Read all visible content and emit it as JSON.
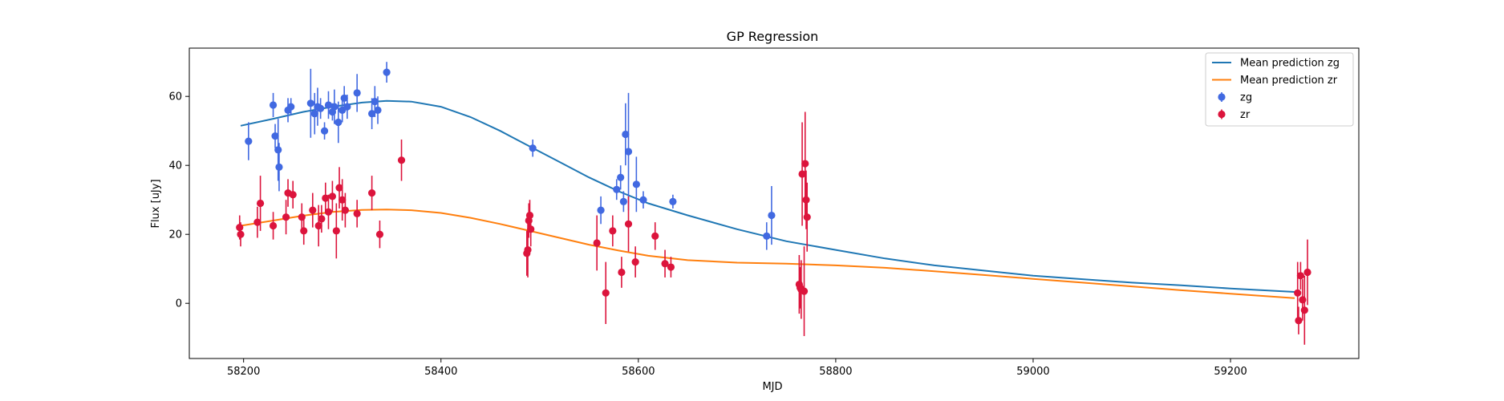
{
  "chart_data": {
    "type": "scatter",
    "title": "GP Regression",
    "xlabel": "MJD",
    "ylabel": "Flux [uJy]",
    "xlim": [
      58145,
      59330
    ],
    "ylim": [
      -16,
      74
    ],
    "xticks": [
      58200,
      58400,
      58600,
      58800,
      59000,
      59200
    ],
    "yticks": [
      0,
      20,
      40,
      60
    ],
    "grid": false,
    "legend_position": "top-right",
    "legend": [
      {
        "label": "Mean prediction zg",
        "kind": "line",
        "color": "#1f77b4"
      },
      {
        "label": "Mean prediction zr",
        "kind": "line",
        "color": "#ff7f0e"
      },
      {
        "label": "zg",
        "kind": "errorbar",
        "color": "#4169e1"
      },
      {
        "label": "zr",
        "kind": "errorbar",
        "color": "#dc143c"
      }
    ],
    "lines": [
      {
        "name": "Mean prediction zg",
        "color": "#1f77b4",
        "x": [
          58197,
          58230,
          58260,
          58290,
          58320,
          58345,
          58370,
          58400,
          58430,
          58460,
          58490,
          58520,
          58550,
          58580,
          58610,
          58650,
          58700,
          58750,
          58800,
          58850,
          58900,
          58950,
          59000,
          59050,
          59100,
          59150,
          59200,
          59265
        ],
        "y": [
          51.5,
          53.5,
          55.5,
          57,
          58.2,
          58.7,
          58.5,
          57,
          54,
          50,
          45.5,
          41,
          36.5,
          32.5,
          29,
          25.5,
          21.5,
          18,
          15.5,
          13,
          11,
          9.5,
          8,
          7,
          6,
          5.2,
          4.3,
          3.3
        ]
      },
      {
        "name": "Mean prediction zr",
        "color": "#ff7f0e",
        "x": [
          58197,
          58230,
          58260,
          58290,
          58320,
          58345,
          58370,
          58400,
          58430,
          58460,
          58490,
          58520,
          58550,
          58580,
          58610,
          58650,
          58700,
          58750,
          58800,
          58850,
          58900,
          58950,
          59000,
          59050,
          59100,
          59150,
          59200,
          59265
        ],
        "y": [
          22.5,
          24,
          25.4,
          26.5,
          27.1,
          27.2,
          27,
          26.2,
          24.8,
          23,
          21,
          19,
          17,
          15.3,
          13.8,
          12.5,
          11.8,
          11.5,
          11,
          10.3,
          9.3,
          8.2,
          7.1,
          6,
          4.9,
          3.8,
          2.8,
          1.5
        ]
      }
    ],
    "series": [
      {
        "name": "zg",
        "color": "#4169e1",
        "x": [
          58205,
          58230,
          58232,
          58235,
          58236,
          58245,
          58248,
          58268,
          58272,
          58275,
          58278,
          58282,
          58286,
          58290,
          58292,
          58296,
          58300,
          58302,
          58305,
          58315,
          58330,
          58333,
          58336,
          58345,
          58493,
          58562,
          58578,
          58582,
          58585,
          58587,
          58590,
          58598,
          58605,
          58635,
          58730,
          58735
        ],
        "y": [
          47,
          57.5,
          48.5,
          44.5,
          39.5,
          56,
          57,
          58,
          55,
          57,
          56.5,
          50,
          57.5,
          55.5,
          57,
          52.5,
          56,
          59.5,
          57,
          61,
          55,
          58.5,
          56,
          67,
          45,
          27,
          33,
          36.5,
          29.5,
          49,
          44,
          34.5,
          30,
          29.5,
          19.5,
          25.5
        ],
        "err": [
          5.5,
          3.5,
          3.5,
          9,
          7,
          3.5,
          2.5,
          10,
          6,
          5.5,
          3,
          2.5,
          4,
          2.5,
          5,
          6,
          3.5,
          3.5,
          3.5,
          5.5,
          4.5,
          4.5,
          4,
          3,
          2.5,
          4,
          3,
          3.5,
          3,
          9,
          17,
          8,
          2.5,
          2,
          4,
          8.5
        ]
      },
      {
        "name": "zr",
        "color": "#dc143c",
        "x": [
          58196,
          58197,
          58214,
          58217,
          58230,
          58243,
          58245,
          58250,
          58259,
          58261,
          58270,
          58276,
          58279,
          58283,
          58286,
          58290,
          58294,
          58297,
          58300,
          58303,
          58315,
          58330,
          58338,
          58360,
          58487,
          58488,
          58489,
          58490,
          58491,
          58558,
          58567,
          58574,
          58583,
          58590,
          58597,
          58617,
          58627,
          58633,
          58763,
          58764,
          58765,
          58766,
          58768,
          58769,
          58770,
          58771,
          59268,
          59269,
          59271,
          59273,
          59275,
          59278
        ],
        "y": [
          22,
          20,
          23.5,
          29,
          22.5,
          25,
          32,
          31.5,
          25,
          21,
          27,
          22.5,
          24.5,
          30.5,
          26.5,
          31,
          21,
          33.5,
          30,
          27,
          26,
          32,
          20,
          41.5,
          14.5,
          15.5,
          24,
          25.5,
          21.5,
          17.5,
          3,
          21,
          9,
          23,
          12,
          19.5,
          11.5,
          10.5,
          5.5,
          4.5,
          4,
          37.5,
          3.5,
          40.5,
          30,
          25,
          3,
          -5,
          8,
          1,
          -2,
          9
        ],
        "err": [
          3.5,
          3.5,
          4.5,
          8,
          4,
          5,
          4,
          4,
          4,
          4,
          5,
          6,
          4,
          4.5,
          5,
          4.5,
          8,
          6,
          6,
          5,
          4,
          5,
          4,
          6,
          6.5,
          8,
          5,
          4.5,
          5,
          8,
          9,
          4.5,
          4.5,
          8,
          4.5,
          4,
          4,
          3,
          8.5,
          6,
          8.5,
          15,
          13,
          15,
          8.5,
          10,
          9,
          4,
          4,
          6,
          10,
          9.5
        ]
      }
    ]
  }
}
